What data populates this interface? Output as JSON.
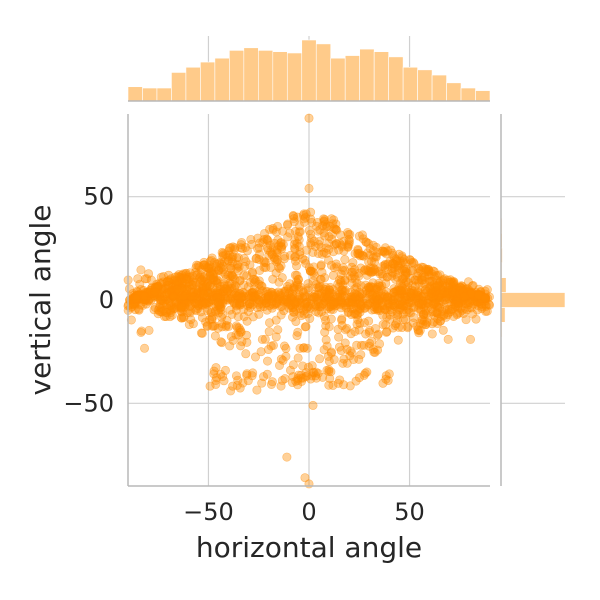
{
  "chart_data": {
    "type": "scatter",
    "subtype": "joint-plot with marginal histograms",
    "xlabel": "horizontal angle",
    "ylabel": "vertical angle",
    "xlim": [
      -90,
      90
    ],
    "ylim": [
      -90,
      90
    ],
    "xticks": [
      -50,
      0,
      50
    ],
    "xtick_labels": [
      "−50",
      "0",
      "50"
    ],
    "yticks": [
      -50,
      0,
      50
    ],
    "ytick_labels": [
      "−50",
      "0",
      "50"
    ],
    "grid": true,
    "legend": "none",
    "colors": {
      "point": "#ff8c00",
      "bar": "#ffcb8a",
      "grid": "#d0d0d0",
      "spine": "#b8b8b8"
    },
    "series": [
      {
        "clusters": [
          {
            "shape": "band",
            "x": [
              -90,
              90
            ],
            "y_center": 0,
            "y_spread": 3,
            "count": 650
          },
          {
            "shape": "band",
            "x": [
              -90,
              90
            ],
            "y_center": 0,
            "y_spread": 8,
            "count": 220
          },
          {
            "shape": "diamond",
            "x": [
              -88,
              88
            ],
            "y_max_at_center": 45,
            "direction": "up",
            "count": 900
          },
          {
            "shape": "diamond",
            "x": [
              -75,
              75
            ],
            "y_max_at_center": 40,
            "direction": "down",
            "count": 260
          },
          {
            "shape": "arc",
            "x": [
              -50,
              40
            ],
            "y": -38,
            "count": 70
          }
        ],
        "outliers": [
          {
            "x": 0,
            "y": 88
          },
          {
            "x": -11,
            "y": -76
          },
          {
            "x": -2,
            "y": -86
          },
          {
            "x": 0,
            "y": -89
          },
          {
            "x": 2,
            "y": -51
          },
          {
            "x": 0,
            "y": 54
          }
        ]
      }
    ],
    "marginal_x": {
      "bin_edges": [
        -90,
        -82.8,
        -75.6,
        -68.4,
        -61.2,
        -54,
        -46.8,
        -39.6,
        -32.4,
        -25.2,
        -18,
        -10.8,
        -3.6,
        3.6,
        10.8,
        18,
        25.2,
        32.4,
        39.6,
        46.8,
        54,
        61.2,
        68.4,
        75.6,
        82.8,
        90
      ],
      "counts": [
        11,
        10,
        10,
        22,
        26,
        30,
        33,
        39,
        41,
        39,
        38,
        37,
        47,
        44,
        33,
        35,
        40,
        38,
        34,
        26,
        24,
        20,
        14,
        10,
        8
      ]
    },
    "marginal_y": {
      "bin_edges": [
        -90,
        -82.8,
        -75.6,
        -68.4,
        -61.2,
        -54,
        -46.8,
        -39.6,
        -32.4,
        -25.2,
        -18,
        -10.8,
        -3.6,
        3.6,
        10.8,
        18,
        25.2,
        32.4,
        39.6,
        46.8,
        54,
        61.2,
        68.4,
        75.6,
        82.8,
        90
      ],
      "counts": [
        0.3,
        0.3,
        0,
        0,
        0,
        0.3,
        0.6,
        0.7,
        0.5,
        0.6,
        1,
        4,
        62,
        5,
        1,
        1.4,
        1.2,
        1,
        0.8,
        0.3,
        0.1,
        0,
        0,
        0,
        0.1
      ]
    }
  }
}
